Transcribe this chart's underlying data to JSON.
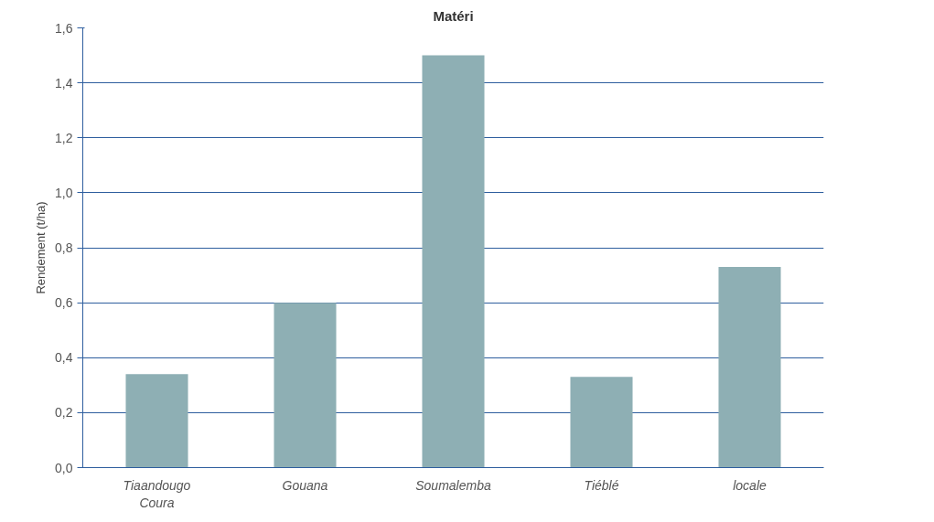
{
  "chart_data": {
    "type": "bar",
    "title": "Matéri",
    "ylabel": "Rendement (t/ha)",
    "categories": [
      "Tiaandougo\nCoura",
      "Gouana",
      "Soumalemba",
      "Tiéblé",
      "locale"
    ],
    "values": [
      0.34,
      0.6,
      1.5,
      0.33,
      0.73
    ],
    "color": "#8eafb4",
    "ylim": [
      0,
      1.6
    ],
    "yticks": [
      {
        "value": 0,
        "label": "0,0"
      },
      {
        "value": 0.2,
        "label": "0,2"
      },
      {
        "value": 0.4,
        "label": "0,4"
      },
      {
        "value": 0.6,
        "label": "0,6"
      },
      {
        "value": 0.8,
        "label": "0,8"
      },
      {
        "value": 1.0,
        "label": "1,0"
      },
      {
        "value": 1.2,
        "label": "1,2"
      },
      {
        "value": 1.4,
        "label": "1,4"
      },
      {
        "value": 1.6,
        "label": "1,6"
      }
    ],
    "grid": "y"
  }
}
